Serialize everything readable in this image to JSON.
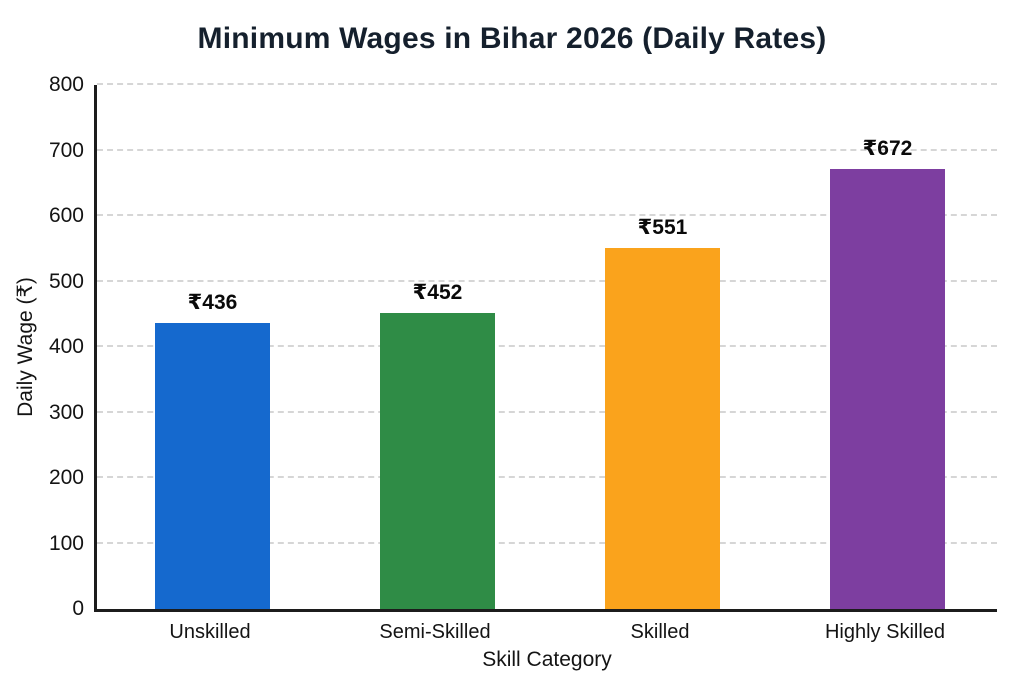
{
  "chart_data": {
    "type": "bar",
    "title": "Minimum Wages in Bihar 2026 (Daily Rates)",
    "categories": [
      "Unskilled",
      "Semi-Skilled",
      "Skilled",
      "Highly Skilled"
    ],
    "values": [
      436,
      452,
      551,
      672
    ],
    "value_labels": [
      "₹436",
      "₹452",
      "₹551",
      "₹672"
    ],
    "bar_colors": [
      "#1569ce",
      "#2f8c46",
      "#faa31c",
      "#7d3ea0"
    ],
    "xlabel": "Skill Category",
    "ylabel": "Daily Wage (₹)",
    "ylim": [
      0,
      800
    ],
    "yticks": [
      0,
      100,
      200,
      300,
      400,
      500,
      600,
      700,
      800
    ],
    "grid": "horizontal-dashed",
    "legend": "none",
    "currency_symbol": "₹"
  },
  "colors": {
    "background": "#ffffff",
    "title_text": "#15202d",
    "axis_line": "#1c1c1c",
    "gridline": "#d6d6d6",
    "tick_text": "#141414",
    "value_label_text": "#0a0a0a"
  }
}
